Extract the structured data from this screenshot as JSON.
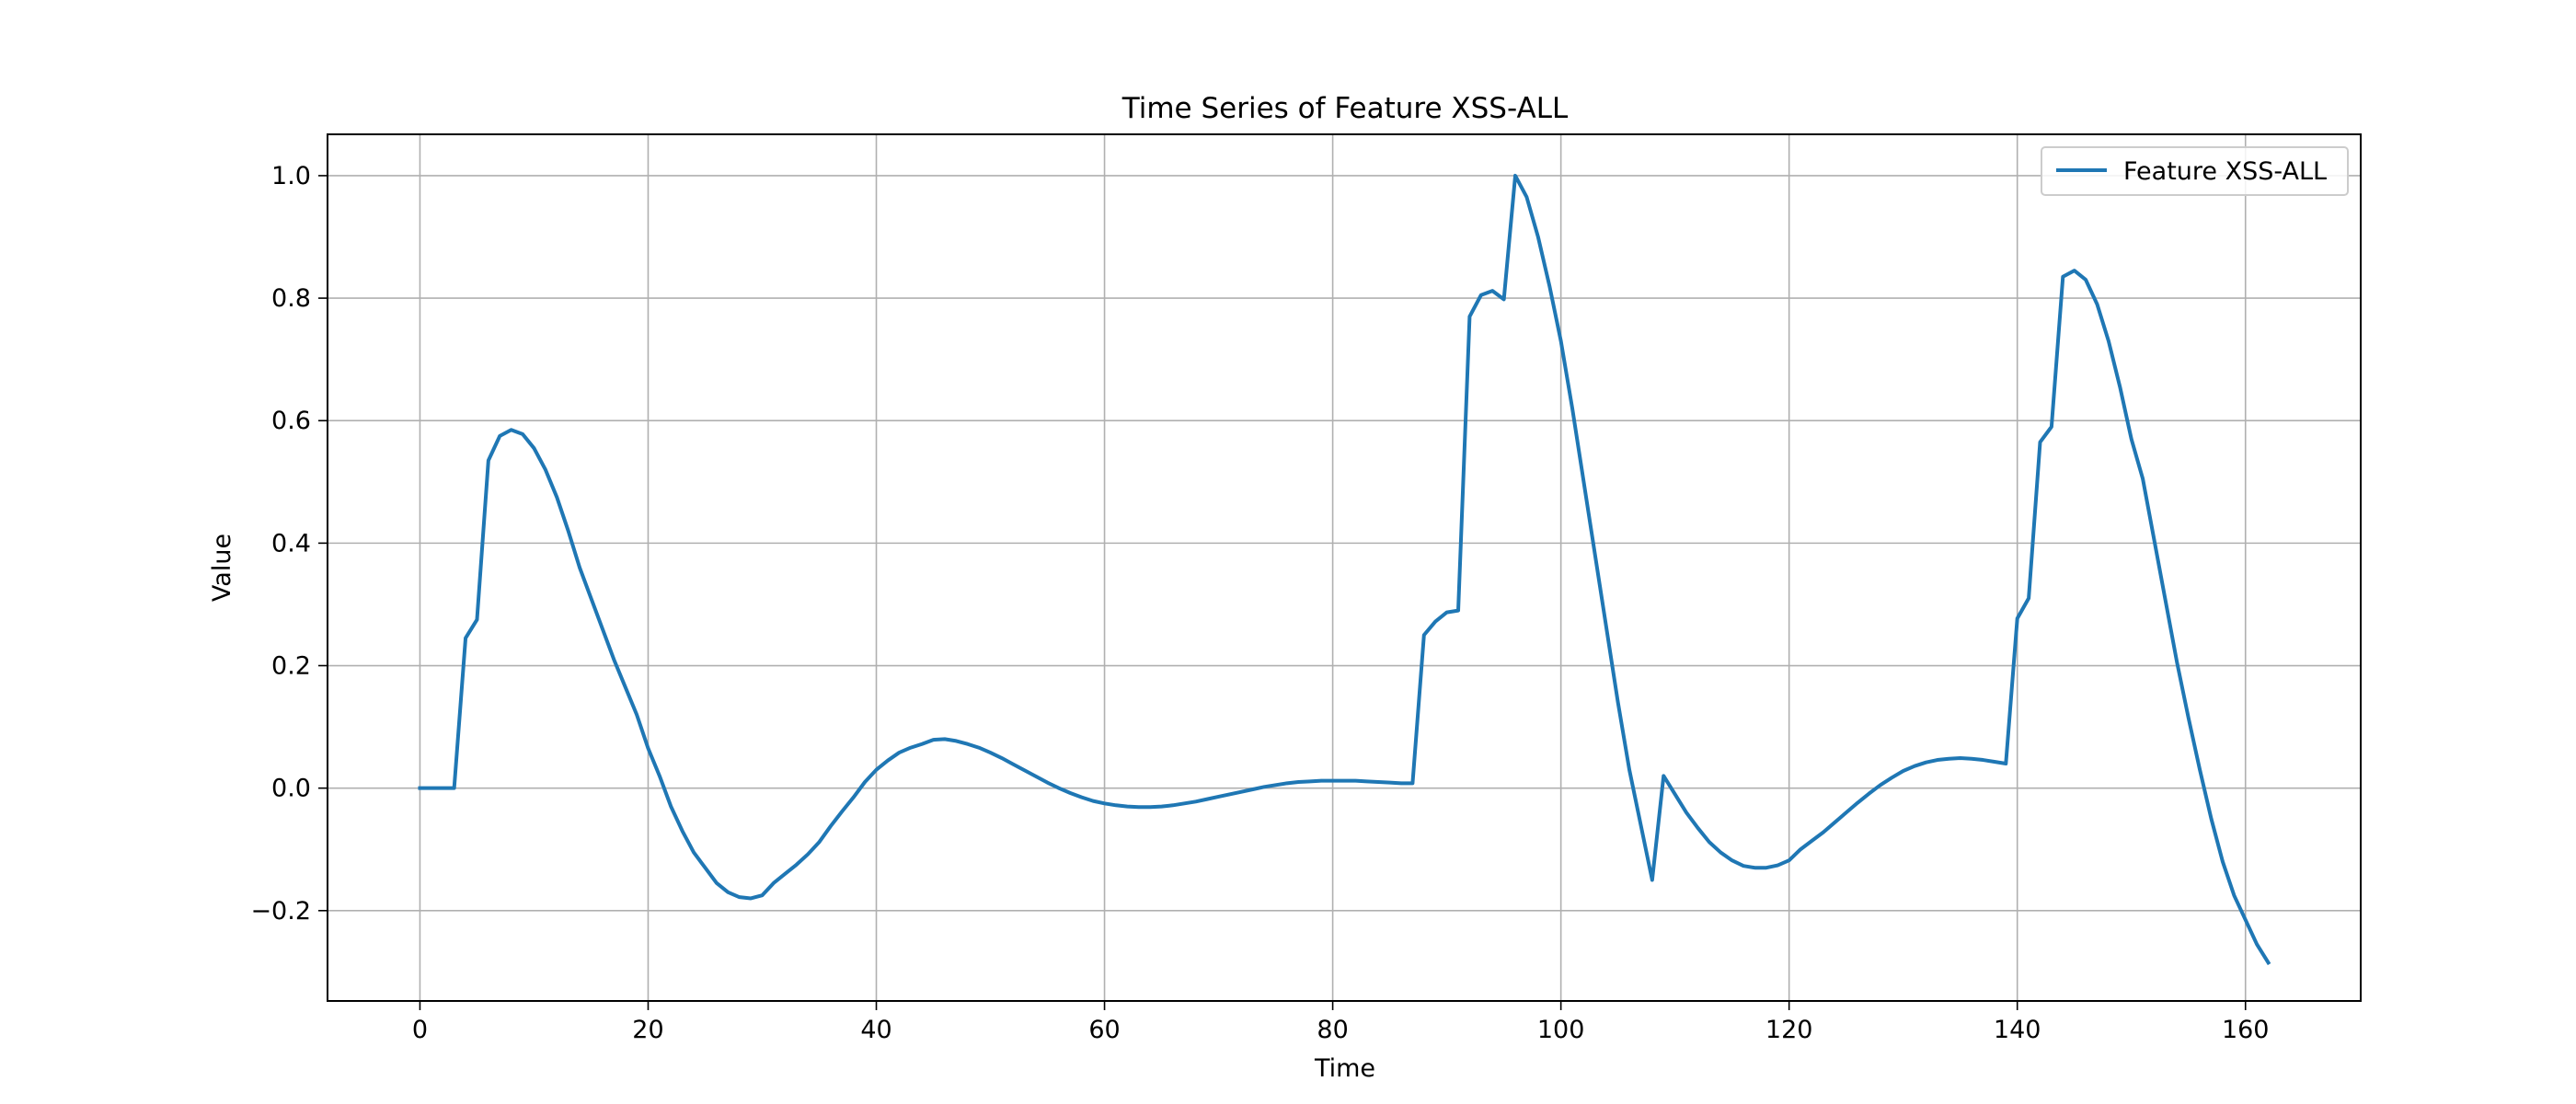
{
  "chart_data": {
    "type": "line",
    "title": "Time Series of Feature XSS-ALL",
    "xlabel": "Time",
    "ylabel": "Value",
    "xlim": [
      -8.1,
      170.1
    ],
    "ylim": [
      -0.3475,
      1.0675
    ],
    "xticks": [
      0,
      20,
      40,
      60,
      80,
      100,
      120,
      140,
      160
    ],
    "yticks": [
      -0.2,
      0.0,
      0.2,
      0.4,
      0.6,
      0.8,
      1.0
    ],
    "xtick_labels": [
      "0",
      "20",
      "40",
      "60",
      "80",
      "100",
      "120",
      "140",
      "160"
    ],
    "ytick_labels": [
      "−0.2",
      "0.0",
      "0.2",
      "0.4",
      "0.6",
      "0.8",
      "1.0"
    ],
    "grid": true,
    "legend_position": "top-right",
    "series": [
      {
        "name": "Feature XSS-ALL",
        "color": "#1f77b4",
        "x": [
          0,
          1,
          2,
          3,
          4,
          5,
          6,
          7,
          8,
          9,
          10,
          11,
          12,
          13,
          14,
          15,
          16,
          17,
          18,
          19,
          20,
          21,
          22,
          23,
          24,
          25,
          26,
          27,
          28,
          29,
          30,
          31,
          32,
          33,
          34,
          35,
          36,
          37,
          38,
          39,
          40,
          41,
          42,
          43,
          44,
          45,
          46,
          47,
          48,
          49,
          50,
          51,
          52,
          53,
          54,
          55,
          56,
          57,
          58,
          59,
          60,
          61,
          62,
          63,
          64,
          65,
          66,
          67,
          68,
          69,
          70,
          71,
          72,
          73,
          74,
          75,
          76,
          77,
          78,
          79,
          80,
          81,
          82,
          83,
          84,
          85,
          86,
          87,
          88,
          89,
          90,
          91,
          92,
          93,
          94,
          95,
          96,
          97,
          98,
          99,
          100,
          101,
          102,
          103,
          104,
          105,
          106,
          107,
          108,
          109,
          110,
          111,
          112,
          113,
          114,
          115,
          116,
          117,
          118,
          119,
          120,
          121,
          122,
          123,
          124,
          125,
          126,
          127,
          128,
          129,
          130,
          131,
          132,
          133,
          134,
          135,
          136,
          137,
          138,
          139,
          140,
          141,
          142,
          143,
          144,
          145,
          146,
          147,
          148,
          149,
          150,
          151,
          152,
          153,
          154,
          155,
          156,
          157,
          158,
          159,
          160,
          161,
          162
        ],
        "y": [
          0.0,
          0.0,
          0.0,
          0.0,
          0.245,
          0.275,
          0.535,
          0.575,
          0.585,
          0.578,
          0.555,
          0.52,
          0.475,
          0.42,
          0.36,
          0.31,
          0.26,
          0.21,
          0.165,
          0.12,
          0.065,
          0.02,
          -0.03,
          -0.07,
          -0.105,
          -0.13,
          -0.155,
          -0.17,
          -0.178,
          -0.18,
          -0.175,
          -0.155,
          -0.14,
          -0.125,
          -0.108,
          -0.088,
          -0.062,
          -0.038,
          -0.015,
          0.01,
          0.03,
          0.045,
          0.058,
          0.066,
          0.072,
          0.079,
          0.08,
          0.077,
          0.072,
          0.066,
          0.058,
          0.049,
          0.039,
          0.029,
          0.019,
          0.009,
          0.0,
          -0.008,
          -0.015,
          -0.021,
          -0.025,
          -0.028,
          -0.03,
          -0.031,
          -0.031,
          -0.03,
          -0.028,
          -0.025,
          -0.022,
          -0.018,
          -0.014,
          -0.01,
          -0.006,
          -0.002,
          0.002,
          0.005,
          0.008,
          0.01,
          0.011,
          0.012,
          0.012,
          0.012,
          0.012,
          0.011,
          0.01,
          0.009,
          0.008,
          0.008,
          0.25,
          0.272,
          0.287,
          0.29,
          0.77,
          0.805,
          0.812,
          0.798,
          1.0,
          0.965,
          0.9,
          0.82,
          0.73,
          0.62,
          0.5,
          0.38,
          0.26,
          0.14,
          0.03,
          -0.06,
          -0.15,
          0.02,
          -0.01,
          -0.04,
          -0.065,
          -0.088,
          -0.105,
          -0.118,
          -0.127,
          -0.13,
          -0.13,
          -0.126,
          -0.118,
          -0.1,
          -0.086,
          -0.072,
          -0.056,
          -0.04,
          -0.024,
          -0.009,
          0.005,
          0.017,
          0.028,
          0.036,
          0.042,
          0.046,
          0.048,
          0.049,
          0.048,
          0.046,
          0.043,
          0.04,
          0.277,
          0.31,
          0.565,
          0.59,
          0.835,
          0.845,
          0.83,
          0.79,
          0.73,
          0.655,
          0.57,
          0.505,
          0.405,
          0.305,
          0.205,
          0.115,
          0.03,
          -0.05,
          -0.12,
          -0.175,
          -0.215,
          -0.255,
          -0.285
        ]
      }
    ]
  }
}
